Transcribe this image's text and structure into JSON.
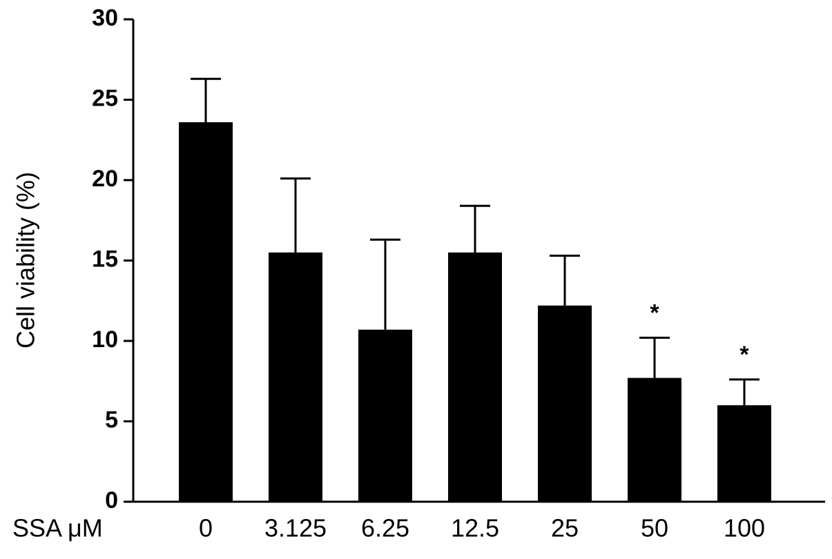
{
  "chart_data": {
    "type": "bar",
    "y_label": "Cell viability (%)",
    "x_label": "SSA μM",
    "categories": [
      "0",
      "3.125",
      "6.25",
      "12.5",
      "25",
      "50",
      "100"
    ],
    "values": [
      23.6,
      15.5,
      10.7,
      15.5,
      12.2,
      7.7,
      6.0
    ],
    "errors": [
      2.7,
      4.6,
      5.6,
      2.9,
      3.1,
      2.5,
      1.6
    ],
    "significance": [
      null,
      null,
      null,
      null,
      null,
      "*",
      "*"
    ],
    "color": "#000000",
    "ylim": [
      0,
      30
    ],
    "yticks": [
      0,
      5,
      10,
      15,
      20,
      25,
      30
    ]
  }
}
